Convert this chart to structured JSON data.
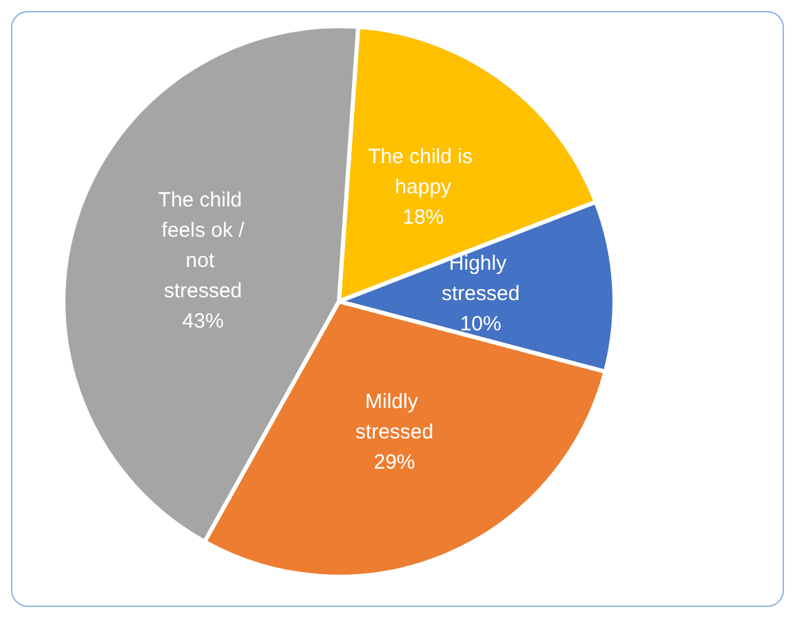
{
  "chart_data": {
    "type": "pie",
    "categories": [
      "The child is happy",
      "Highly stressed",
      "Mildly stressed",
      "The child feels ok /not stressed"
    ],
    "values": [
      18,
      10,
      29,
      43
    ],
    "colors": [
      "#ffc000",
      "#4472c4",
      "#ed7d31",
      "#a5a5a5"
    ],
    "value_labels": [
      "18%",
      "10%",
      "29%",
      "43%"
    ],
    "legend": false
  }
}
